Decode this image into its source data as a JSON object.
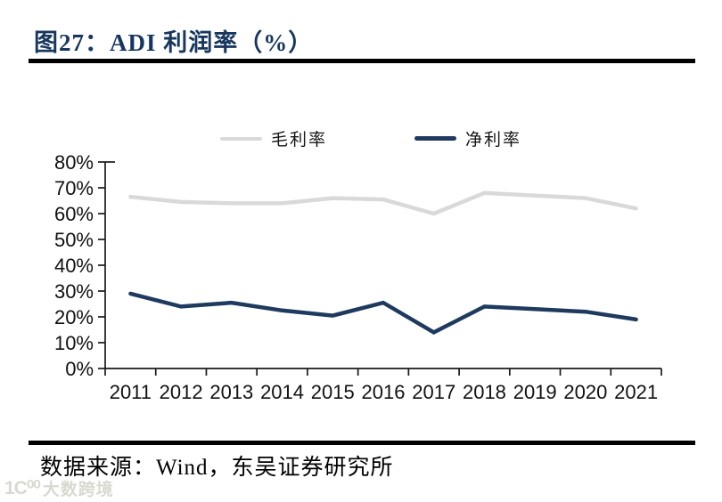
{
  "figure": {
    "title": "图27：ADI 利润率（%）",
    "source": "数据来源：Wind，东吴证券研究所"
  },
  "watermark": {
    "logo": "1Ϲ⁰⁰",
    "text": "大数跨境"
  },
  "colors": {
    "title": "#17375e",
    "axis": "#1a1a1a",
    "rule": "#000000",
    "gross_margin_line": "#d9d9d9",
    "net_margin_line": "#1f3a5f"
  },
  "chart_data": {
    "type": "line",
    "title": "图27：ADI 利润率（%）",
    "categories": [
      "2011",
      "2012",
      "2013",
      "2014",
      "2015",
      "2016",
      "2017",
      "2018",
      "2019",
      "2020",
      "2021"
    ],
    "series": [
      {
        "name": "毛利率",
        "color": "#d9d9d9",
        "values": [
          66.5,
          64.5,
          64,
          64,
          66,
          65.5,
          60,
          68,
          67,
          66,
          62
        ]
      },
      {
        "name": "净利率",
        "color": "#1f3a5f",
        "values": [
          29,
          24,
          25.5,
          22.5,
          20.5,
          25.5,
          14,
          24,
          23,
          22,
          19
        ]
      }
    ],
    "xlabel": "",
    "ylabel": "",
    "ylim": [
      0,
      80
    ],
    "ytick_step": 10,
    "yticks": [
      "0%",
      "10%",
      "20%",
      "30%",
      "40%",
      "50%",
      "60%",
      "70%",
      "80%"
    ],
    "grid": false,
    "legend_position": "top"
  }
}
